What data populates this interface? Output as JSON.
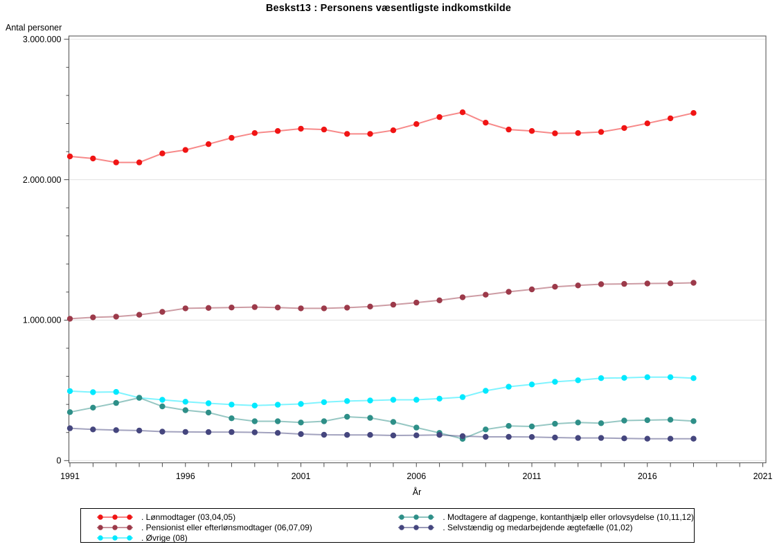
{
  "title": "Beskst13 : Personens væsentligste indkomstkilde",
  "y_axis": {
    "label": "Antal personer",
    "tick_labels": [
      "0",
      "1.000.000",
      "2.000.000",
      "3.000.000"
    ],
    "tick_values": [
      0,
      1000000,
      2000000,
      3000000
    ],
    "minor_tick_step": 200000
  },
  "x_axis": {
    "label": "År",
    "tick_labels": [
      "1991",
      "1996",
      "2001",
      "2006",
      "2011",
      "2016",
      "2021"
    ],
    "tick_values": [
      1991,
      1996,
      2001,
      2006,
      2011,
      2016,
      2021
    ],
    "minor_tick_step": 1
  },
  "chart_data": {
    "type": "line",
    "x": [
      1991,
      1992,
      1993,
      1994,
      1995,
      1996,
      1997,
      1998,
      1999,
      2000,
      2001,
      2002,
      2003,
      2004,
      2005,
      2006,
      2007,
      2008,
      2009,
      2010,
      2011,
      2012,
      2013,
      2014,
      2015,
      2016,
      2017,
      2018
    ],
    "xlim": [
      1991,
      2021
    ],
    "ylim": [
      0,
      3000000
    ],
    "grid": "horizontal",
    "legend_position": "bottom",
    "series": [
      {
        "id": "lonmodtager",
        "label": ". Lønmodtager (03,04,05)",
        "color": "#f01414",
        "values": [
          2166000,
          2151000,
          2123000,
          2123000,
          2187000,
          2212000,
          2253000,
          2298000,
          2332000,
          2347000,
          2363000,
          2357000,
          2326000,
          2326000,
          2352000,
          2396000,
          2446000,
          2480000,
          2406000,
          2357000,
          2347000,
          2330000,
          2332000,
          2340000,
          2368000,
          2401000,
          2437000,
          2475000
        ]
      },
      {
        "id": "pensionist",
        "label": ". Pensionist eller efterlønsmodtager (06,07,09)",
        "color": "#9c3a4a",
        "values": [
          1010000,
          1020000,
          1025000,
          1038000,
          1059000,
          1084000,
          1087000,
          1090000,
          1093000,
          1090000,
          1084000,
          1084000,
          1089000,
          1097000,
          1110000,
          1125000,
          1141000,
          1163000,
          1181000,
          1202000,
          1219000,
          1238000,
          1247000,
          1256000,
          1258000,
          1261000,
          1262000,
          1266000
        ]
      },
      {
        "id": "ovrige",
        "label": ". Øvrige (08)",
        "color": "#00e9ff",
        "values": [
          495000,
          487000,
          489000,
          447000,
          433000,
          419000,
          408000,
          399000,
          392000,
          398000,
          403000,
          416000,
          424000,
          428000,
          433000,
          433000,
          441000,
          452000,
          497000,
          526000,
          542000,
          561000,
          572000,
          587000,
          589000,
          594000,
          594000,
          587000
        ]
      },
      {
        "id": "dagpenge",
        "label": ". Modtagere af dagpenge, kontanthjælp eller orlovsydelse (10,11,12)",
        "color": "#2e8f88",
        "values": [
          345000,
          377000,
          410000,
          447000,
          386000,
          359000,
          342000,
          301000,
          280000,
          280000,
          271000,
          280000,
          312000,
          304000,
          275000,
          235000,
          197000,
          155000,
          222000,
          247000,
          243000,
          262000,
          271000,
          266000,
          285000,
          288000,
          291000,
          281000
        ]
      },
      {
        "id": "selvstaendig",
        "label": ". Selvstændig og medarbejdende ægtefælle (01,02)",
        "color": "#45467e",
        "values": [
          230000,
          222000,
          217000,
          214000,
          206000,
          204000,
          203000,
          203000,
          201000,
          197000,
          189000,
          184000,
          183000,
          183000,
          179000,
          180000,
          183000,
          174000,
          169000,
          169000,
          168000,
          164000,
          161000,
          161000,
          158000,
          156000,
          156000,
          156000
        ]
      }
    ]
  },
  "legend": {
    "columns": [
      [
        0,
        1,
        2
      ],
      [
        3,
        4
      ]
    ]
  },
  "style_colors": {
    "frame": "#595959",
    "tick": "#4a4a4a",
    "gridline": "#e4e4e4"
  }
}
